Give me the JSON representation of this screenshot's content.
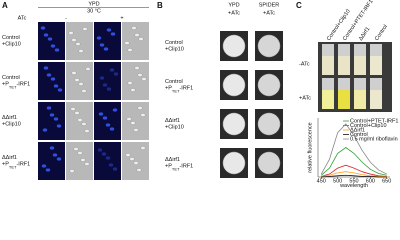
{
  "panel_a": {
    "letter": "A",
    "medium": "YPD",
    "temperature": "30 °C",
    "treatment": "ATc",
    "minus": "-",
    "plus": "+",
    "rows": [
      {
        "line1": "Control",
        "line2": [
          "+Clip10"
        ]
      },
      {
        "line1": "Control",
        "line2": [
          "+P",
          "TET",
          "-IRF1"
        ]
      },
      {
        "line1": "ΔΔirf1",
        "line2": [
          "+Clip10"
        ]
      },
      {
        "line1": "ΔΔirf1",
        "line2": [
          "+P",
          "TET",
          "-IRF1"
        ]
      }
    ]
  },
  "panel_b": {
    "letter": "B",
    "columns": [
      {
        "medium": "YPD",
        "treatment": "+ATc"
      },
      {
        "medium": "SPIDER",
        "treatment": "+ATc"
      }
    ],
    "rows": [
      {
        "line1": "Control",
        "line2": [
          "+Clip10"
        ]
      },
      {
        "line1": "Control",
        "line2": [
          "+P",
          "TET",
          "-IRF1"
        ]
      },
      {
        "line1": "ΔΔirf1",
        "line2": [
          "+Clip10"
        ]
      },
      {
        "line1": "ΔΔirf1",
        "line2": [
          "+P",
          "TET",
          "-IRF1"
        ]
      }
    ]
  },
  "panel_c": {
    "letter": "C",
    "columns": [
      "Control+Clip10",
      "Control+PTET-IRF1",
      "ΔΔirf1",
      "Control"
    ],
    "rows": [
      "-ATc",
      "+ATc"
    ],
    "chart": {
      "type": "line",
      "x_label": "wavelength",
      "y_label": "relative fluorescence",
      "x": [
        450,
        475,
        500,
        525,
        550,
        575,
        600,
        625,
        650
      ],
      "xlim": [
        440,
        660
      ],
      "xticks": [
        450,
        500,
        550,
        600,
        650
      ],
      "ylim": [
        0,
        1
      ],
      "series": [
        {
          "name": "Control+PTET-IRF1",
          "color": "#2ca02c",
          "values": [
            0.03,
            0.15,
            0.4,
            0.5,
            0.4,
            0.25,
            0.13,
            0.06,
            0.03
          ]
        },
        {
          "name": "Control+Clip10",
          "color": "#d62728",
          "values": [
            0.01,
            0.05,
            0.15,
            0.2,
            0.15,
            0.09,
            0.05,
            0.02,
            0.01
          ]
        },
        {
          "name": "ΔΔirf1",
          "color": "#ff9f1c",
          "values": [
            0.01,
            0.03,
            0.07,
            0.09,
            0.07,
            0.04,
            0.02,
            0.01,
            0.01
          ]
        },
        {
          "name": "Control",
          "color": "#111111",
          "values": [
            0,
            0.01,
            0.02,
            0.03,
            0.02,
            0.01,
            0.01,
            0,
            0
          ]
        },
        {
          "name": "0.5 mg/ml riboflavin",
          "color": "#888888",
          "values": [
            0.05,
            0.3,
            0.75,
            0.9,
            0.7,
            0.45,
            0.25,
            0.12,
            0.05
          ]
        }
      ]
    }
  }
}
